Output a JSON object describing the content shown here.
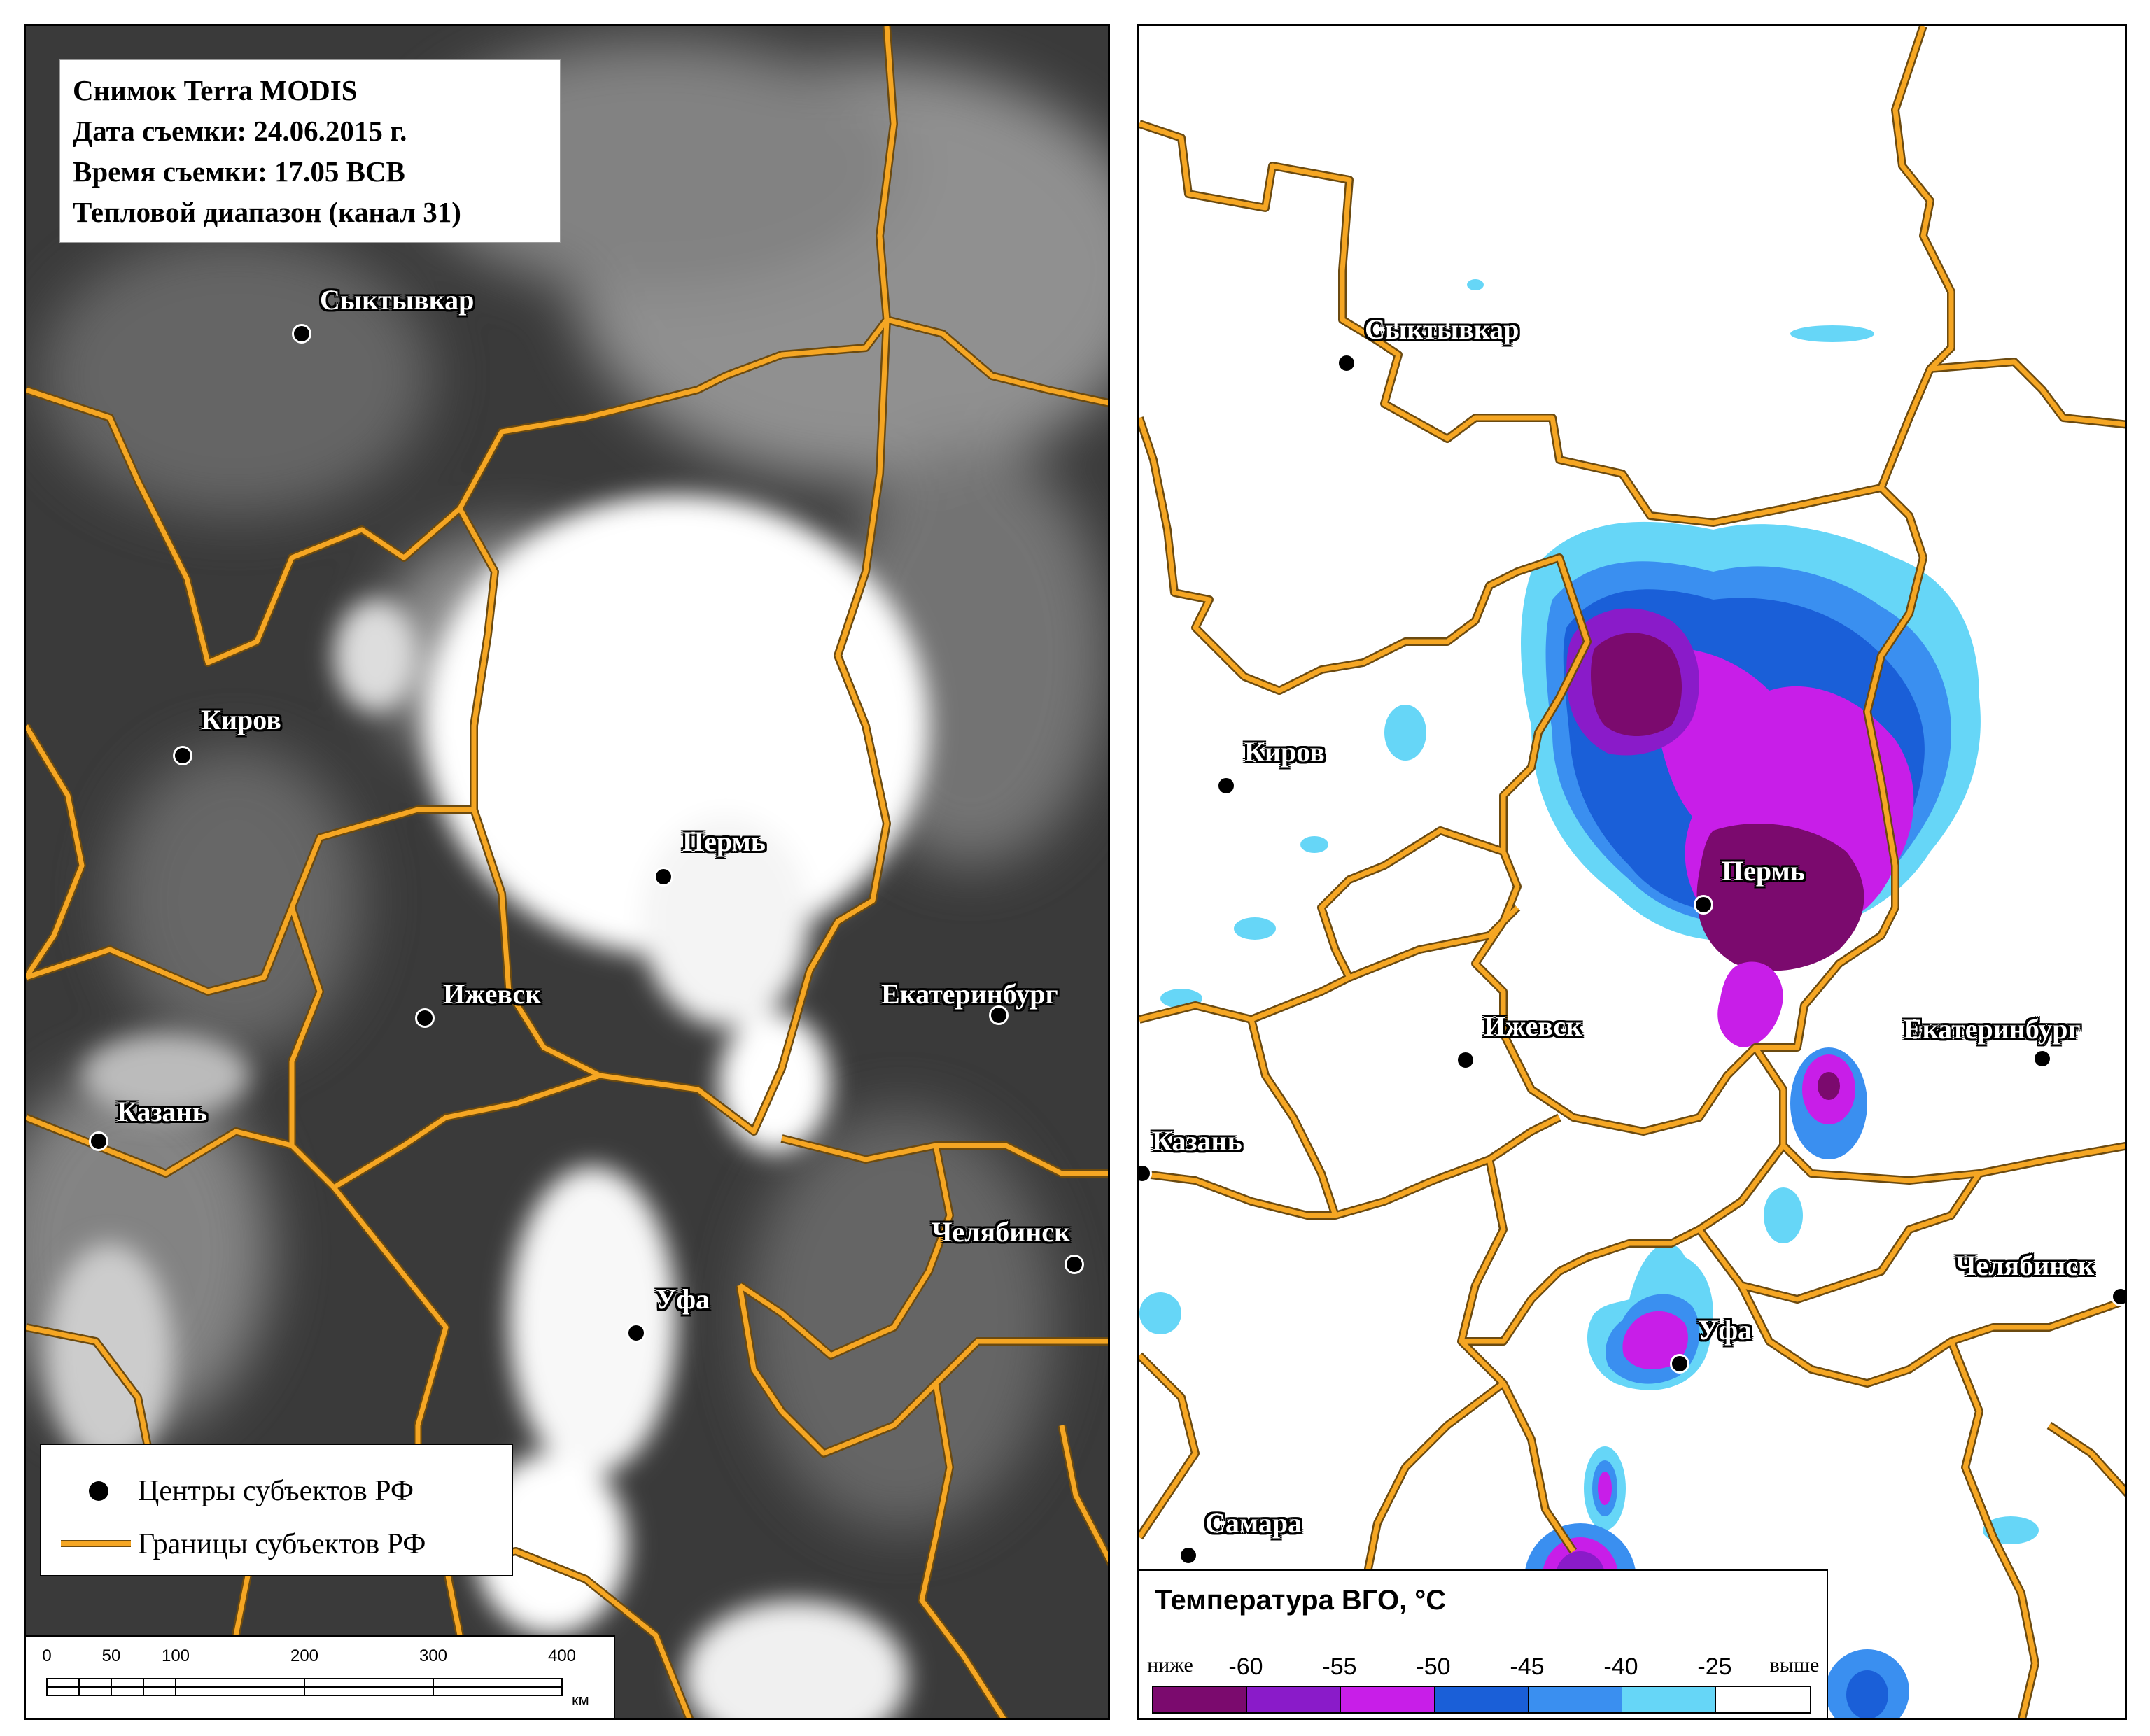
{
  "left_panel": {
    "info": [
      "Снимок Terra MODIS",
      "Дата съемки: 24.06.2015 г.",
      "Время съемки: 17.05 ВСВ",
      "Тепловой диапазон (канал 31)"
    ],
    "cities": [
      {
        "name": "Сыктывкар"
      },
      {
        "name": "Киров"
      },
      {
        "name": "Пермь"
      },
      {
        "name": "Ижевск"
      },
      {
        "name": "Екатеринбург"
      },
      {
        "name": "Казань"
      },
      {
        "name": "Челябинск"
      },
      {
        "name": "Уфа"
      }
    ],
    "legend": {
      "centers": "Центры субъектов РФ",
      "borders": "Границы субъектов РФ"
    },
    "scalebar": {
      "ticks": [
        "0",
        "50",
        "100",
        "200",
        "300",
        "400"
      ],
      "unit": "км"
    }
  },
  "right_panel": {
    "cities": [
      {
        "name": "Сыктывкар"
      },
      {
        "name": "Киров"
      },
      {
        "name": "Пермь"
      },
      {
        "name": "Ижевск"
      },
      {
        "name": "Екатеринбург"
      },
      {
        "name": "Казань"
      },
      {
        "name": "Челябинск"
      },
      {
        "name": "Уфа"
      },
      {
        "name": "Самара"
      }
    ],
    "temp_legend": {
      "title": "Температура ВГО, °С",
      "labels": [
        "ниже",
        "-60",
        "-55",
        "-50",
        "-45",
        "-40",
        "-25",
        "выше"
      ],
      "colors": [
        "#7b0a6e",
        "#8a1bc9",
        "#c81ee8",
        "#1a5fd8",
        "#3a8ff0",
        "#66d6f7",
        "#ffffff"
      ]
    }
  },
  "colors": {
    "border_orange": "#f5a623",
    "border_dark": "#6b4a10"
  }
}
